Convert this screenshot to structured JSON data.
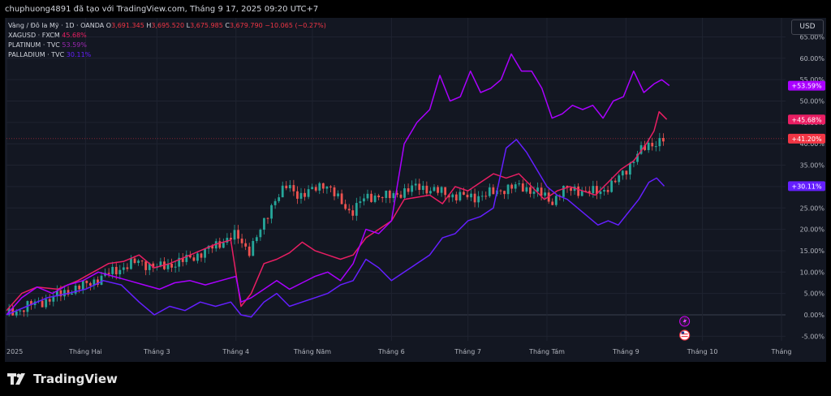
{
  "header": {
    "text": "chuphuong4891 đã tạo với TradingView.com, Tháng 9 17, 2025 09:20 UTC+7"
  },
  "legend": {
    "main": {
      "name": "Vàng / Đô la Mỹ · 1D · OANDA",
      "o_label": "O",
      "o": "3,691.345",
      "h_label": "H",
      "h": "3,695.520",
      "l_label": "L",
      "l": "3,675.985",
      "c_label": "C",
      "c": "3,679.790",
      "change": "−10.065 (−0.27%)"
    },
    "items": [
      {
        "name": "XAGUSD · FXCM",
        "value": "45.68%",
        "color": "#e91e63"
      },
      {
        "name": "PLATINUM · TVC",
        "value": "53.59%",
        "color": "#9c27b0"
      },
      {
        "name": "PALLADIUM · TVC",
        "value": "30.11%",
        "color": "#651fff"
      }
    ]
  },
  "currency_button": "USD",
  "footer": {
    "brand": "TradingView"
  },
  "colors": {
    "up": "#26a69a",
    "down": "#ef5350",
    "grid": "#1f2330",
    "axis_text": "#b2b5be",
    "silver": "#e91e63",
    "platinum": "#aa00ff",
    "palladium": "#651fff"
  },
  "chart_data": {
    "type": "line",
    "title": "Vàng / Đô la Mỹ · 1D · OANDA",
    "xlabel": "",
    "ylabel": "",
    "y_axis": {
      "unit": "%",
      "ylim": [
        -6,
        66
      ],
      "ticks": [
        "-5.00%",
        "0.00%",
        "5.00%",
        "10.00%",
        "15.00%",
        "20.00%",
        "25.00%",
        "30.00%",
        "35.00%",
        "40.00%",
        "45.00%",
        "50.00%",
        "55.00%",
        "60.00%",
        "65.00%"
      ]
    },
    "x_axis": {
      "tick_labels": [
        "2025",
        "Tháng Hai",
        "Tháng 3",
        "Tháng 4",
        "Tháng Năm",
        "Tháng 6",
        "Tháng 7",
        "Tháng Tám",
        "Tháng 9",
        "Tháng 10",
        "Tháng"
      ],
      "tick_days": [
        0,
        31,
        59,
        90,
        120,
        151,
        181,
        212,
        243,
        273,
        304
      ],
      "xlim": [
        0,
        304
      ]
    },
    "price_labels": [
      {
        "text": "+53.59%",
        "value": 53.59,
        "color": "#aa00ff"
      },
      {
        "text": "+45.68%",
        "value": 45.68,
        "color": "#e91e63"
      },
      {
        "text": "+41.20%",
        "value": 41.2,
        "color": "#f23645"
      },
      {
        "text": "+30.11%",
        "value": 30.11,
        "color": "#651fff"
      }
    ],
    "current_line": 41.2,
    "gold": [
      [
        0,
        0
      ],
      [
        8,
        2
      ],
      [
        16,
        3.5
      ],
      [
        24,
        5.5
      ],
      [
        31,
        7
      ],
      [
        38,
        9
      ],
      [
        45,
        11
      ],
      [
        52,
        12.5
      ],
      [
        59,
        11
      ],
      [
        66,
        12
      ],
      [
        73,
        13.5
      ],
      [
        80,
        15.5
      ],
      [
        87,
        18
      ],
      [
        90,
        18.5
      ],
      [
        95,
        15
      ],
      [
        100,
        20
      ],
      [
        105,
        27
      ],
      [
        110,
        30
      ],
      [
        115,
        28
      ],
      [
        120,
        29
      ],
      [
        125,
        31
      ],
      [
        130,
        27
      ],
      [
        135,
        24
      ],
      [
        140,
        27
      ],
      [
        145,
        28
      ],
      [
        150,
        27.5
      ],
      [
        156,
        29
      ],
      [
        162,
        30
      ],
      [
        168,
        29
      ],
      [
        175,
        28
      ],
      [
        181,
        27.5
      ],
      [
        188,
        28
      ],
      [
        195,
        29.5
      ],
      [
        202,
        30
      ],
      [
        209,
        28.5
      ],
      [
        214,
        26.5
      ],
      [
        218,
        29
      ],
      [
        223,
        29.5
      ],
      [
        228,
        28.5
      ],
      [
        233,
        29
      ],
      [
        238,
        30.5
      ],
      [
        243,
        34
      ],
      [
        248,
        38
      ],
      [
        253,
        40
      ],
      [
        258,
        41.2
      ]
    ],
    "series": [
      {
        "name": "XAGUSD · FXCM",
        "color": "#e91e63",
        "values": [
          [
            0,
            1
          ],
          [
            6,
            5
          ],
          [
            12,
            6.5
          ],
          [
            20,
            6
          ],
          [
            28,
            8
          ],
          [
            34,
            10
          ],
          [
            40,
            12
          ],
          [
            46,
            12.5
          ],
          [
            52,
            14
          ],
          [
            58,
            11
          ],
          [
            64,
            12
          ],
          [
            70,
            13.5
          ],
          [
            76,
            15
          ],
          [
            82,
            16.5
          ],
          [
            88,
            17.5
          ],
          [
            92,
            2
          ],
          [
            96,
            5
          ],
          [
            101,
            12
          ],
          [
            106,
            13
          ],
          [
            111,
            14.5
          ],
          [
            116,
            17
          ],
          [
            121,
            15
          ],
          [
            126,
            14
          ],
          [
            131,
            13
          ],
          [
            136,
            14
          ],
          [
            141,
            18
          ],
          [
            146,
            20
          ],
          [
            151,
            22
          ],
          [
            156,
            27
          ],
          [
            161,
            27.5
          ],
          [
            166,
            28
          ],
          [
            171,
            26
          ],
          [
            176,
            30
          ],
          [
            181,
            29
          ],
          [
            186,
            31
          ],
          [
            191,
            33
          ],
          [
            196,
            32
          ],
          [
            201,
            33
          ],
          [
            206,
            30
          ],
          [
            211,
            27
          ],
          [
            216,
            29
          ],
          [
            221,
            30
          ],
          [
            226,
            29
          ],
          [
            231,
            28
          ],
          [
            236,
            31
          ],
          [
            241,
            34
          ],
          [
            246,
            36
          ],
          [
            251,
            40
          ],
          [
            254,
            43
          ],
          [
            256,
            47.5
          ],
          [
            259,
            45.7
          ]
        ]
      },
      {
        "name": "PLATINUM · TVC",
        "color": "#aa00ff",
        "values": [
          [
            0,
            0
          ],
          [
            6,
            4
          ],
          [
            12,
            6.5
          ],
          [
            18,
            5
          ],
          [
            24,
            7
          ],
          [
            30,
            8
          ],
          [
            36,
            10
          ],
          [
            42,
            9
          ],
          [
            48,
            8
          ],
          [
            54,
            7
          ],
          [
            60,
            6
          ],
          [
            66,
            7.5
          ],
          [
            72,
            8
          ],
          [
            78,
            7
          ],
          [
            84,
            8
          ],
          [
            90,
            9
          ],
          [
            92,
            3
          ],
          [
            96,
            4
          ],
          [
            101,
            6
          ],
          [
            106,
            8
          ],
          [
            111,
            6
          ],
          [
            116,
            7.5
          ],
          [
            121,
            9
          ],
          [
            126,
            10
          ],
          [
            131,
            8
          ],
          [
            136,
            12
          ],
          [
            141,
            20
          ],
          [
            146,
            19
          ],
          [
            151,
            22
          ],
          [
            156,
            40
          ],
          [
            161,
            45
          ],
          [
            166,
            48
          ],
          [
            170,
            56
          ],
          [
            174,
            50
          ],
          [
            178,
            51
          ],
          [
            182,
            57
          ],
          [
            186,
            52
          ],
          [
            190,
            53
          ],
          [
            194,
            55
          ],
          [
            198,
            61
          ],
          [
            202,
            57
          ],
          [
            206,
            57
          ],
          [
            210,
            53
          ],
          [
            214,
            46
          ],
          [
            218,
            47
          ],
          [
            222,
            49
          ],
          [
            226,
            48
          ],
          [
            230,
            49
          ],
          [
            234,
            46
          ],
          [
            238,
            50
          ],
          [
            242,
            51
          ],
          [
            246,
            57
          ],
          [
            250,
            52
          ],
          [
            254,
            54
          ],
          [
            257,
            55
          ],
          [
            260,
            53.6
          ]
        ]
      },
      {
        "name": "PALLADIUM · TVC",
        "color": "#651fff",
        "values": [
          [
            0,
            0
          ],
          [
            8,
            2
          ],
          [
            16,
            4
          ],
          [
            24,
            5
          ],
          [
            31,
            6
          ],
          [
            38,
            8
          ],
          [
            45,
            7
          ],
          [
            52,
            3
          ],
          [
            58,
            0
          ],
          [
            64,
            2
          ],
          [
            70,
            1
          ],
          [
            76,
            3
          ],
          [
            82,
            2
          ],
          [
            88,
            3
          ],
          [
            92,
            0
          ],
          [
            96,
            -0.5
          ],
          [
            101,
            3
          ],
          [
            106,
            5
          ],
          [
            111,
            2
          ],
          [
            116,
            3
          ],
          [
            121,
            4
          ],
          [
            126,
            5
          ],
          [
            131,
            7
          ],
          [
            136,
            8
          ],
          [
            141,
            13
          ],
          [
            146,
            11
          ],
          [
            151,
            8
          ],
          [
            156,
            10
          ],
          [
            161,
            12
          ],
          [
            166,
            14
          ],
          [
            171,
            18
          ],
          [
            176,
            19
          ],
          [
            181,
            22
          ],
          [
            186,
            23
          ],
          [
            191,
            25
          ],
          [
            196,
            39
          ],
          [
            200,
            41
          ],
          [
            204,
            38
          ],
          [
            208,
            34
          ],
          [
            212,
            30
          ],
          [
            216,
            28
          ],
          [
            220,
            27
          ],
          [
            224,
            25
          ],
          [
            228,
            23
          ],
          [
            232,
            21
          ],
          [
            236,
            22
          ],
          [
            240,
            21
          ],
          [
            244,
            24
          ],
          [
            248,
            27
          ],
          [
            252,
            31
          ],
          [
            255,
            32
          ],
          [
            258,
            30.1
          ]
        ]
      }
    ]
  }
}
